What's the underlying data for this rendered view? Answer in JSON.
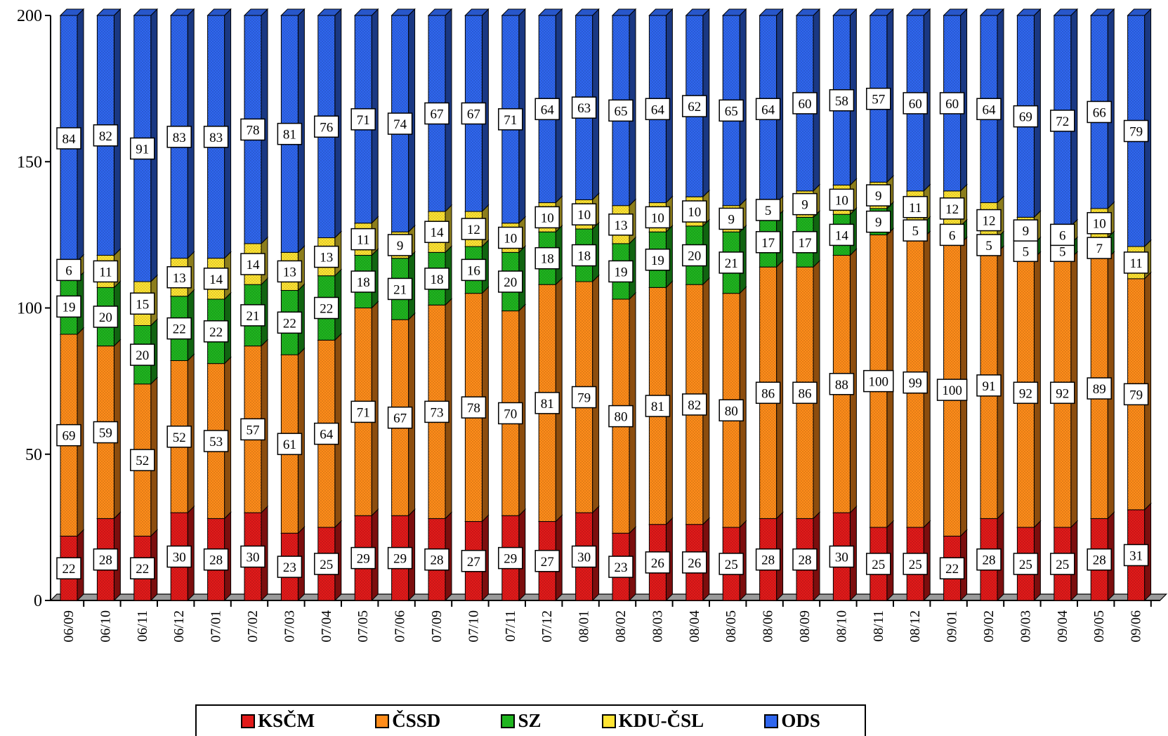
{
  "chart_data": {
    "type": "bar",
    "stacked": true,
    "three_d": true,
    "ylim": [
      0,
      200
    ],
    "yticks": [
      "0",
      "50",
      "100",
      "150",
      "200"
    ],
    "categories": [
      "06/09",
      "06/10",
      "06/11",
      "06/12",
      "07/01",
      "07/02",
      "07/03",
      "07/04",
      "07/05",
      "07/06",
      "07/09",
      "07/10",
      "07/11",
      "07/12",
      "08/01",
      "08/02",
      "08/03",
      "08/04",
      "08/05",
      "08/06",
      "08/09",
      "08/10",
      "08/11",
      "08/12",
      "09/01",
      "09/02",
      "09/03",
      "09/04",
      "09/05",
      "09/06"
    ],
    "series": [
      {
        "name": "KSČM",
        "color": "#e21a1a",
        "values": [
          22,
          28,
          22,
          30,
          28,
          30,
          23,
          25,
          29,
          29,
          28,
          27,
          29,
          27,
          30,
          23,
          26,
          26,
          25,
          28,
          28,
          30,
          25,
          25,
          22,
          28,
          25,
          25,
          28,
          31
        ]
      },
      {
        "name": "ČSSD",
        "color": "#ff8c1a",
        "values": [
          69,
          59,
          52,
          52,
          53,
          57,
          61,
          64,
          71,
          67,
          73,
          78,
          70,
          81,
          79,
          80,
          81,
          82,
          80,
          86,
          86,
          88,
          100,
          99,
          100,
          91,
          92,
          92,
          89,
          79
        ]
      },
      {
        "name": "SZ",
        "color": "#1fb51f",
        "values": [
          19,
          20,
          20,
          22,
          22,
          21,
          22,
          22,
          18,
          21,
          18,
          16,
          20,
          18,
          18,
          19,
          19,
          20,
          21,
          17,
          17,
          14,
          9,
          5,
          6,
          5,
          5,
          5,
          7,
          0
        ]
      },
      {
        "name": "KDU-ČSL",
        "color": "#ffe433",
        "values": [
          6,
          11,
          15,
          13,
          14,
          14,
          13,
          13,
          11,
          9,
          14,
          12,
          10,
          10,
          10,
          13,
          10,
          10,
          9,
          5,
          9,
          10,
          9,
          11,
          12,
          12,
          9,
          6,
          10,
          11
        ]
      },
      {
        "name": "ODS",
        "color": "#2f66ee",
        "values": [
          84,
          82,
          91,
          83,
          83,
          78,
          81,
          76,
          71,
          74,
          67,
          67,
          71,
          64,
          63,
          65,
          64,
          62,
          65,
          64,
          60,
          58,
          57,
          60,
          60,
          64,
          69,
          72,
          66,
          79
        ]
      }
    ],
    "xlabel": "",
    "ylabel": "",
    "legend_position": "bottom",
    "grid": false
  }
}
